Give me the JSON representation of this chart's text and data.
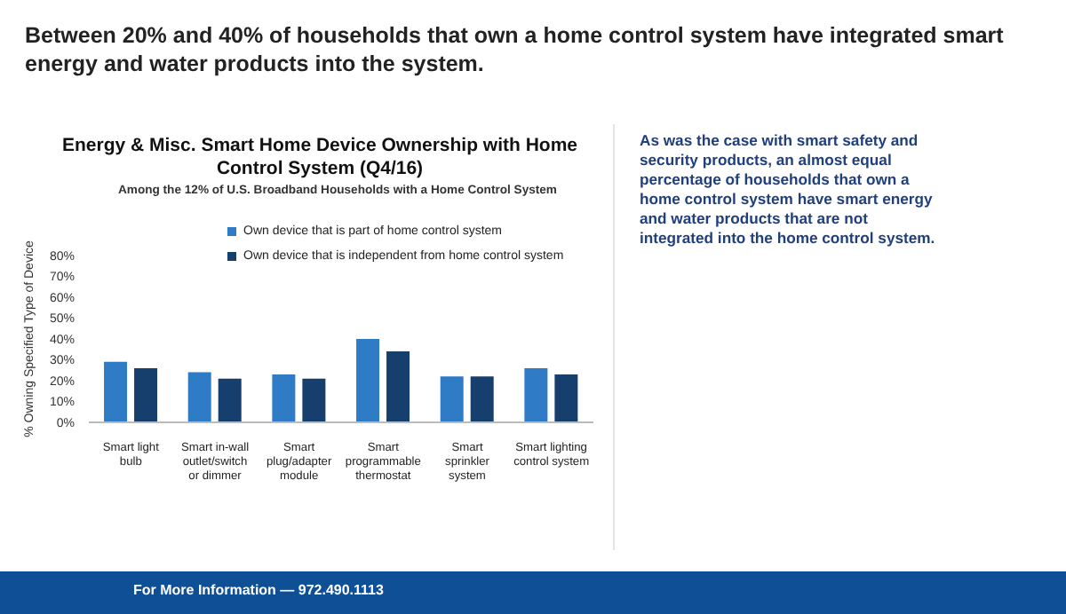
{
  "chart_data": {
    "type": "bar",
    "title": "Energy & Misc. Smart Home Device Ownership with Home Control System (Q4/16)",
    "subtitle": "Among the 12% of U.S. Broadband Households with a Home Control System",
    "ylabel": "% Owning Specified Type of Device",
    "annotations": [
      "Between 20% and 40% of households that own a home control system have integrated smart energy and water products into the system.",
      "As was the case with smart safety and security products, an almost equal percentage of households that own a home control system have smart energy and water products that are not integrated into the home control system.",
      "For More Information — 972.490.1113"
    ],
    "categories": [
      "Smart light bulb",
      "Smart in-wall outlet/switch or dimmer",
      "Smart plug/adapter module",
      "Smart programmable thermostat",
      "Smart sprinkler system",
      "Smart lighting control system"
    ],
    "series": [
      {
        "name": "Own device that is part of home control system",
        "color": "#2f7bc6",
        "values": [
          29,
          24,
          23,
          40,
          22,
          26
        ]
      },
      {
        "name": "Own device that is independent from home control system",
        "color": "#173f6e",
        "values": [
          26,
          21,
          21,
          34,
          22,
          23
        ]
      }
    ],
    "ylim": [
      0,
      80
    ],
    "yticks": [
      {
        "value": 0,
        "label": "0%"
      },
      {
        "value": 10,
        "label": "10%"
      },
      {
        "value": 20,
        "label": "20%"
      },
      {
        "value": 30,
        "label": "30%"
      },
      {
        "value": 40,
        "label": "40%"
      },
      {
        "value": 50,
        "label": "50%"
      },
      {
        "value": 60,
        "label": "60%"
      },
      {
        "value": 70,
        "label": "70%"
      },
      {
        "value": 80,
        "label": "80%"
      }
    ],
    "legend": "top",
    "grid": false
  }
}
